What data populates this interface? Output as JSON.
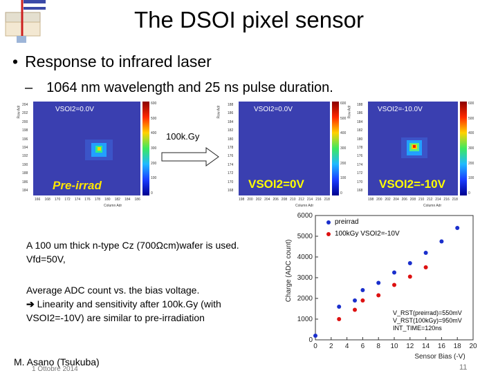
{
  "slide": {
    "title": "The DSOI pixel sensor",
    "bullet": "Response to infrared laser",
    "sub_bullet": "1064 nm wavelength and 25 ns pulse duration.",
    "arrow_label": "100k.Gy",
    "text_line1": "A 100 um thick n-type Cz (700Ωcm)wafer is used.",
    "text_line2": "Vfd=50V,",
    "text_line3": "Average ADC count vs. the bias voltage.",
    "text_line4": "Linearity and sensitivity after 100k.Gy (with",
    "text_line5": "VSOI2=-10V) are similar to pre-irradiation",
    "author": "M. Asano (Tsukuba)",
    "date": "1 Ottobre 2014",
    "page_number": "11"
  },
  "panels": [
    {
      "header": "VSOI2=0.0V",
      "overlay": "Pre-irrad",
      "y_title": "Row Adr",
      "x_title": "Column Adr",
      "y_ticks": [
        "204",
        "202",
        "200",
        "198",
        "196",
        "194",
        "192",
        "190",
        "188",
        "186",
        "184"
      ],
      "x_ticks": [
        "166",
        "168",
        "170",
        "172",
        "174",
        "176",
        "178",
        "180",
        "182",
        "184",
        "186"
      ],
      "cbar_ticks": [
        "600",
        "500",
        "400",
        "300",
        "200",
        "100",
        "0"
      ]
    },
    {
      "header": "VSOI2=0.0V",
      "overlay": "VSOI2=0V",
      "y_title": "Row Adr",
      "x_title": "Column Adr",
      "y_ticks": [
        "188",
        "186",
        "184",
        "182",
        "180",
        "178",
        "176",
        "174",
        "172",
        "170",
        "168"
      ],
      "x_ticks": [
        "198",
        "200",
        "202",
        "204",
        "206",
        "208",
        "210",
        "212",
        "214",
        "216",
        "218"
      ],
      "cbar_ticks": [
        "600",
        "500",
        "400",
        "300",
        "200",
        "100",
        "0"
      ]
    },
    {
      "header": "VSOI2=-10.0V",
      "overlay": "VSOI2=-10V",
      "y_title": "Row Adr",
      "x_title": "Column Adr",
      "y_ticks": [
        "188",
        "186",
        "184",
        "182",
        "180",
        "178",
        "176",
        "174",
        "172",
        "170",
        "168"
      ],
      "x_ticks": [
        "198",
        "200",
        "202",
        "204",
        "206",
        "208",
        "210",
        "212",
        "214",
        "216",
        "218"
      ],
      "cbar_ticks": [
        "600",
        "500",
        "400",
        "300",
        "200",
        "100",
        "0"
      ]
    }
  ],
  "chart_data": {
    "type": "scatter",
    "xlabel": "Sensor Bias (-V)",
    "ylabel": "Charge (ADC count)",
    "xlim": [
      0,
      20
    ],
    "ylim": [
      0,
      6000
    ],
    "x_ticks": [
      0,
      2,
      4,
      6,
      8,
      10,
      12,
      14,
      16,
      18,
      20
    ],
    "y_ticks": [
      0,
      1000,
      2000,
      3000,
      4000,
      5000,
      6000
    ],
    "legend_position": "top-left",
    "series": [
      {
        "name": "preirrad",
        "color": "#1a2fcc",
        "x": [
          0,
          3,
          5,
          6,
          8,
          10,
          12,
          14,
          16,
          18
        ],
        "y": [
          200,
          1600,
          1900,
          2400,
          2750,
          3250,
          3700,
          4200,
          4750,
          5400
        ]
      },
      {
        "name": "100kGy VSOI2=-10V",
        "color": "#dd1111",
        "x": [
          3,
          5,
          6,
          8,
          10,
          12,
          14
        ],
        "y": [
          1000,
          1450,
          1900,
          2150,
          2650,
          3050,
          3500
        ]
      }
    ],
    "annotations": [
      "V_RST(preirrad)=550mV",
      "V_RST(100kGy)=950mV",
      "INT_TIME=120ns"
    ]
  }
}
